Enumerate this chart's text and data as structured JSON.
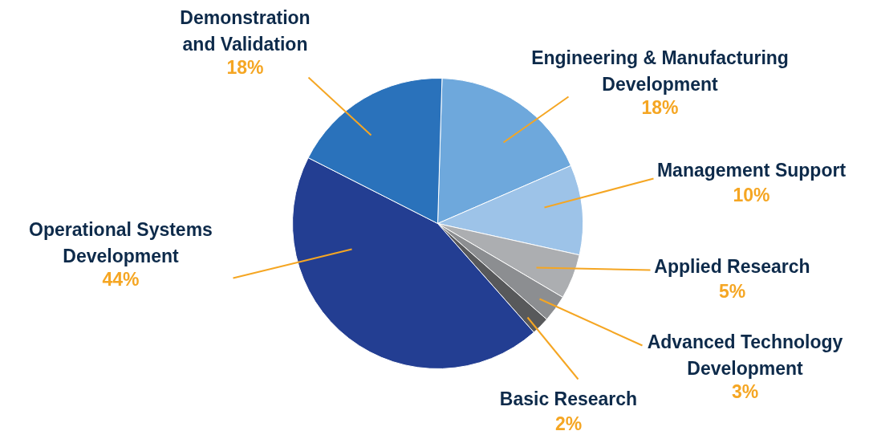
{
  "chart_data": {
    "type": "pie",
    "categories": [
      "Engineering & Manufacturing\nDevelopment",
      "Management Support",
      "Applied Research",
      "Advanced Technology\nDevelopment",
      "Basic Research",
      "Operational Systems\nDevelopment",
      "Demonstration\nand Validation"
    ],
    "values": [
      18,
      10,
      5,
      3,
      2,
      44,
      18
    ],
    "value_labels": [
      "18%",
      "10%",
      "5%",
      "3%",
      "2%",
      "44%",
      "18%"
    ],
    "colors": [
      "#6ea8dc",
      "#9dc3e8",
      "#acaeb1",
      "#8c8e91",
      "#58595b",
      "#233e92",
      "#2a72bb"
    ]
  }
}
